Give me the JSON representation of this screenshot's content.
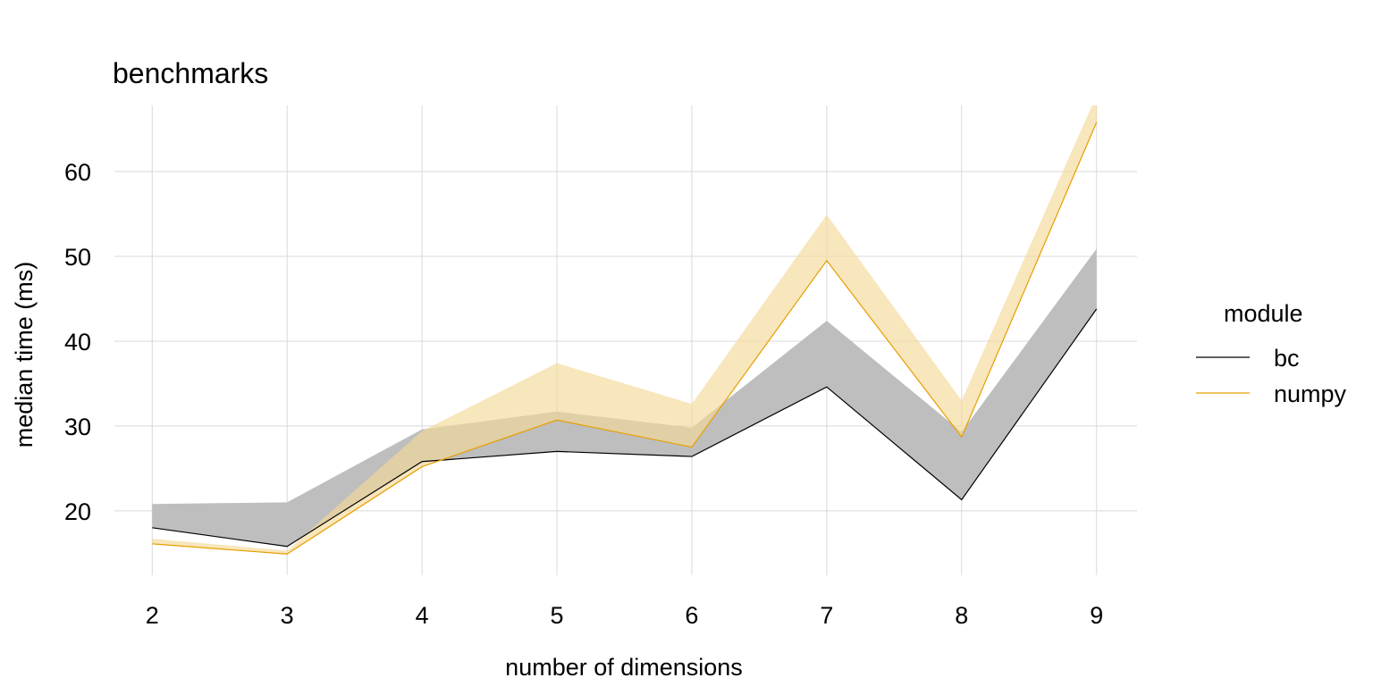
{
  "chart_data": {
    "type": "area",
    "title": "benchmarks",
    "xlabel": "number of dimensions",
    "ylabel": "median time (ms)",
    "x": [
      2,
      3,
      4,
      5,
      6,
      7,
      8,
      9
    ],
    "x_ticks": [
      "2",
      "3",
      "4",
      "5",
      "6",
      "7",
      "8",
      "9"
    ],
    "y_ticks": [
      20,
      30,
      40,
      50,
      60
    ],
    "xlim": [
      1.72,
      9.3
    ],
    "ylim": [
      12.4,
      67.8
    ],
    "grid": true,
    "legend": {
      "title": "module",
      "position": "right"
    },
    "series": [
      {
        "name": "bc",
        "color": "#000000",
        "band_color": "#bebebe",
        "line": [
          18.0,
          15.8,
          25.8,
          27.0,
          26.4,
          34.6,
          21.3,
          43.8
        ],
        "upper": [
          20.8,
          21.0,
          29.6,
          31.7,
          29.8,
          42.4,
          29.3,
          50.9
        ]
      },
      {
        "name": "numpy",
        "color": "#e69f00",
        "band_color": "#f5d898",
        "line": [
          16.1,
          14.9,
          25.2,
          30.7,
          27.5,
          49.5,
          28.7,
          65.8
        ],
        "upper": [
          16.7,
          15.3,
          29.4,
          37.4,
          32.6,
          54.9,
          33.0,
          69.0
        ]
      }
    ]
  }
}
